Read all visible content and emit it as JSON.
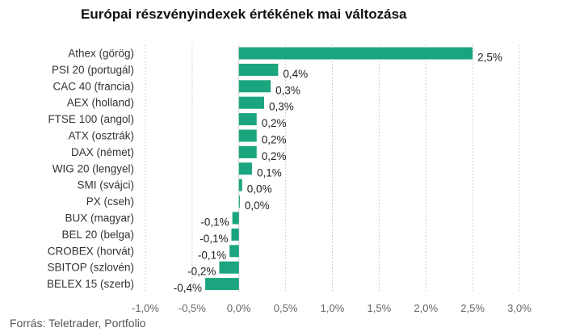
{
  "title": "Európai részvényindexek értékének mai változása",
  "source": "Forrás: Teletrader, Portfolio",
  "colors": {
    "bar": "#1aa57e",
    "grid": "#d0d0d0",
    "text": "#333333"
  },
  "chart_data": {
    "type": "bar",
    "orientation": "horizontal",
    "title": "Európai részvényindexek értékének mai változása",
    "categories": [
      "Athex (görög)",
      "PSI 20 (portugál)",
      "CAC 40 (francia)",
      "AEX (holland)",
      "FTSE 100 (angol)",
      "ATX (osztrák)",
      "DAX (német)",
      "WIG 20 (lengyel)",
      "SMI (svájci)",
      "PX (cseh)",
      "BUX (magyar)",
      "BEL 20 (belga)",
      "CROBEX (horvát)",
      "SBITOP (szlovén)",
      "BELEX 15 (szerb)"
    ],
    "values": [
      2.5,
      0.42,
      0.34,
      0.27,
      0.19,
      0.19,
      0.19,
      0.14,
      0.035,
      0.01,
      -0.07,
      -0.08,
      -0.1,
      -0.21,
      -0.36
    ],
    "value_labels": [
      "2,5%",
      "0,4%",
      "0,3%",
      "0,3%",
      "0,2%",
      "0,2%",
      "0,2%",
      "0,1%",
      "0,0%",
      "0,0%",
      "-0,1%",
      "-0,1%",
      "-0,1%",
      "-0,2%",
      "-0,4%"
    ],
    "xlim": [
      -1.0,
      3.0
    ],
    "xticks": [
      -1.0,
      -0.5,
      0.0,
      0.5,
      1.0,
      1.5,
      2.0,
      2.5,
      3.0
    ],
    "xtick_labels": [
      "-1,0%",
      "-0,5%",
      "0,0%",
      "0,5%",
      "1,0%",
      "1,5%",
      "2,0%",
      "2,5%",
      "3,0%"
    ],
    "xlabel": "",
    "ylabel": "",
    "grid": "vertical",
    "legend": "none"
  }
}
